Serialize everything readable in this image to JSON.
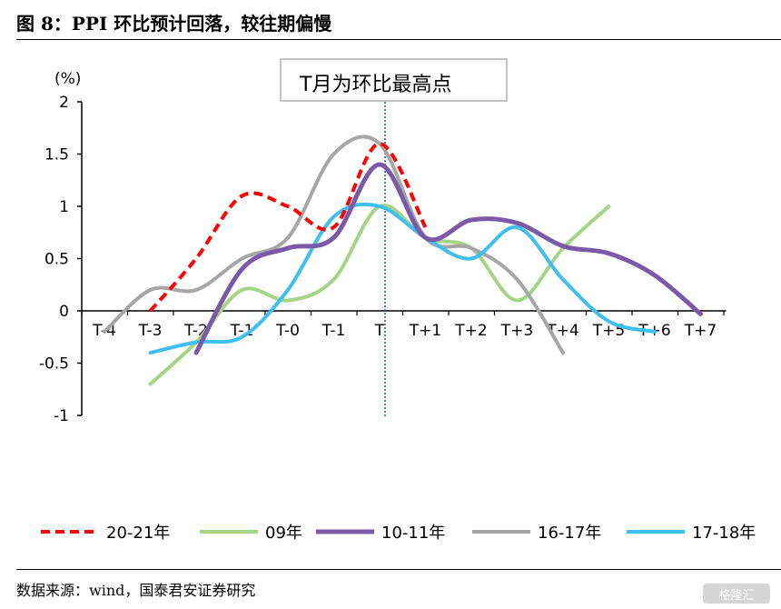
{
  "header": {
    "title": "图 8：PPI 环比预计回落，较往期偏慢"
  },
  "footer": {
    "source": "数据来源：wind，国泰君安证券研究",
    "watermark": "格隆汇"
  },
  "chart_data": {
    "type": "line",
    "title": "",
    "ylabel": "(%)",
    "xlabel": "",
    "ylim": [
      -1,
      2
    ],
    "yticks": [
      2,
      1.5,
      1,
      0.5,
      0,
      -0.5,
      -1
    ],
    "ytick_labels": [
      "2",
      "1.5",
      "1",
      "0.5",
      "0",
      "-0.5",
      "-1"
    ],
    "categories": [
      "T-4",
      "T-3",
      "T-2",
      "T-1",
      "T-0",
      "T-1",
      "T",
      "T+1",
      "T+2",
      "T+3",
      "T+4",
      "T+5",
      "T+6",
      "T+7"
    ],
    "annotation": {
      "text": "T月为环比最高点",
      "at_category_index": 6
    },
    "grid": false,
    "legend_position": "bottom",
    "series": [
      {
        "name": "20-21年",
        "color": "#ff0000",
        "dashed": true,
        "width": 4,
        "values": [
          null,
          0.0,
          0.5,
          1.1,
          1.0,
          0.8,
          1.6,
          0.8,
          null,
          null,
          null,
          null,
          null,
          null
        ]
      },
      {
        "name": "09年",
        "color": "#a6d486",
        "dashed": false,
        "width": 4,
        "values": [
          null,
          -0.7,
          -0.3,
          0.2,
          0.1,
          0.3,
          1.0,
          0.7,
          0.6,
          0.1,
          0.6,
          1.0,
          null,
          null
        ]
      },
      {
        "name": "10-11年",
        "color": "#7a5aa6",
        "dashed": false,
        "width": 5,
        "values": [
          null,
          null,
          -0.4,
          0.4,
          0.6,
          0.7,
          1.4,
          0.7,
          0.87,
          0.84,
          0.62,
          0.55,
          0.34,
          -0.03
        ]
      },
      {
        "name": "16-17年",
        "color": "#a6a6a6",
        "dashed": false,
        "width": 4,
        "values": [
          -0.2,
          0.2,
          0.2,
          0.5,
          0.7,
          1.5,
          1.6,
          0.7,
          0.6,
          0.3,
          -0.4,
          null,
          null,
          null
        ]
      },
      {
        "name": "17-18年",
        "color": "#3fbef0",
        "dashed": false,
        "width": 4,
        "values": [
          null,
          -0.4,
          -0.3,
          -0.25,
          0.2,
          0.9,
          1.0,
          0.7,
          0.5,
          0.8,
          0.3,
          -0.1,
          -0.2,
          null
        ]
      }
    ]
  }
}
